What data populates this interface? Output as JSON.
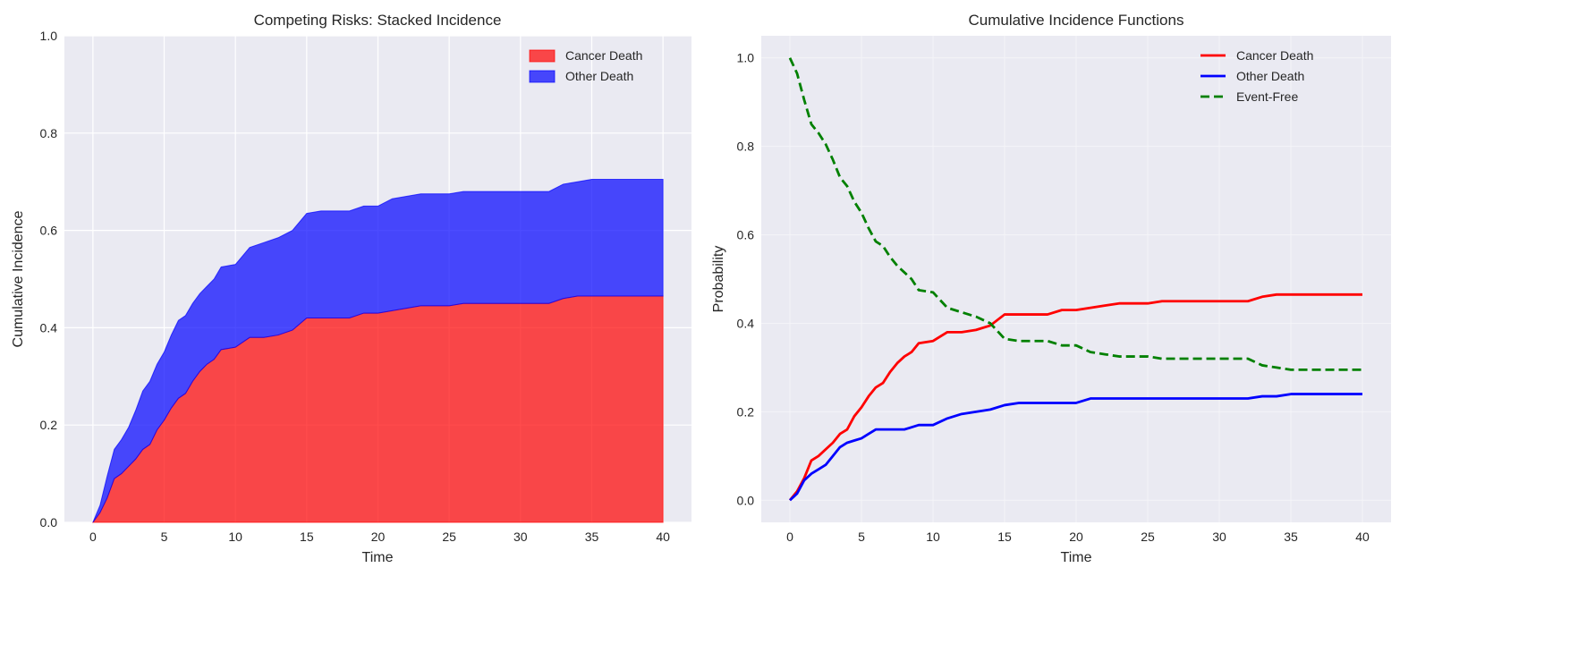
{
  "chart_data": [
    {
      "type": "area",
      "stacked": true,
      "title": "Competing Risks: Stacked Incidence",
      "xlabel": "Time",
      "ylabel": "Cumulative Incidence",
      "xlim": [
        -2,
        42
      ],
      "ylim": [
        0,
        1
      ],
      "xticks": [
        0,
        5,
        10,
        15,
        20,
        25,
        30,
        35,
        40
      ],
      "yticks": [
        0.0,
        0.2,
        0.4,
        0.6,
        0.8,
        1.0
      ],
      "ytick_labels": [
        "0.0",
        "0.2",
        "0.4",
        "0.6",
        "0.8",
        "1.0"
      ],
      "grid": true,
      "legend_position": "top-right",
      "series": [
        {
          "name": "Cancer Death",
          "color": "#ff0000",
          "source": "cancer"
        },
        {
          "name": "Other Death",
          "color": "#0000ff",
          "source": "other"
        }
      ]
    },
    {
      "type": "line",
      "title": "Cumulative Incidence Functions",
      "xlabel": "Time",
      "ylabel": "Probability",
      "xlim": [
        -2,
        42
      ],
      "ylim": [
        -0.05,
        1.05
      ],
      "xticks": [
        0,
        5,
        10,
        15,
        20,
        25,
        30,
        35,
        40
      ],
      "yticks": [
        0.0,
        0.2,
        0.4,
        0.6,
        0.8,
        1.0
      ],
      "ytick_labels": [
        "0.0",
        "0.2",
        "0.4",
        "0.6",
        "0.8",
        "1.0"
      ],
      "grid": true,
      "legend_position": "top-right",
      "series": [
        {
          "name": "Cancer Death",
          "color": "#ff0000",
          "style": "solid",
          "source": "cancer"
        },
        {
          "name": "Other Death",
          "color": "#0000ff",
          "style": "solid",
          "source": "other"
        },
        {
          "name": "Event-Free",
          "color": "#008000",
          "style": "dashed",
          "source": "eventfree"
        }
      ]
    }
  ],
  "data": {
    "time": [
      0,
      0.5,
      1,
      1.5,
      2,
      2.5,
      3,
      3.5,
      4,
      4.5,
      5,
      5.5,
      6,
      6.5,
      7,
      7.5,
      8,
      8.5,
      9,
      10,
      11,
      12,
      13,
      14,
      15,
      16,
      17,
      18,
      19,
      20,
      21,
      22,
      23,
      24,
      25,
      26,
      28,
      30,
      32,
      33,
      34,
      35,
      36,
      38,
      40
    ],
    "cancer": [
      0,
      0.02,
      0.05,
      0.09,
      0.1,
      0.115,
      0.13,
      0.15,
      0.16,
      0.19,
      0.21,
      0.235,
      0.255,
      0.265,
      0.29,
      0.31,
      0.325,
      0.335,
      0.355,
      0.36,
      0.38,
      0.38,
      0.385,
      0.395,
      0.42,
      0.42,
      0.42,
      0.42,
      0.43,
      0.43,
      0.435,
      0.44,
      0.445,
      0.445,
      0.445,
      0.45,
      0.45,
      0.45,
      0.45,
      0.46,
      0.465,
      0.465,
      0.465,
      0.465,
      0.465
    ],
    "other": [
      0,
      0.015,
      0.045,
      0.06,
      0.07,
      0.08,
      0.1,
      0.12,
      0.13,
      0.135,
      0.14,
      0.15,
      0.16,
      0.16,
      0.16,
      0.16,
      0.16,
      0.165,
      0.17,
      0.17,
      0.185,
      0.195,
      0.2,
      0.205,
      0.215,
      0.22,
      0.22,
      0.22,
      0.22,
      0.22,
      0.23,
      0.23,
      0.23,
      0.23,
      0.23,
      0.23,
      0.23,
      0.23,
      0.23,
      0.235,
      0.235,
      0.24,
      0.24,
      0.24,
      0.24
    ],
    "eventfree": [
      1,
      0.965,
      0.905,
      0.85,
      0.83,
      0.805,
      0.77,
      0.73,
      0.71,
      0.675,
      0.65,
      0.615,
      0.585,
      0.575,
      0.55,
      0.53,
      0.515,
      0.5,
      0.475,
      0.47,
      0.435,
      0.425,
      0.415,
      0.4,
      0.365,
      0.36,
      0.36,
      0.36,
      0.35,
      0.35,
      0.335,
      0.33,
      0.325,
      0.325,
      0.325,
      0.32,
      0.32,
      0.32,
      0.32,
      0.305,
      0.3,
      0.295,
      0.295,
      0.295,
      0.295
    ]
  }
}
